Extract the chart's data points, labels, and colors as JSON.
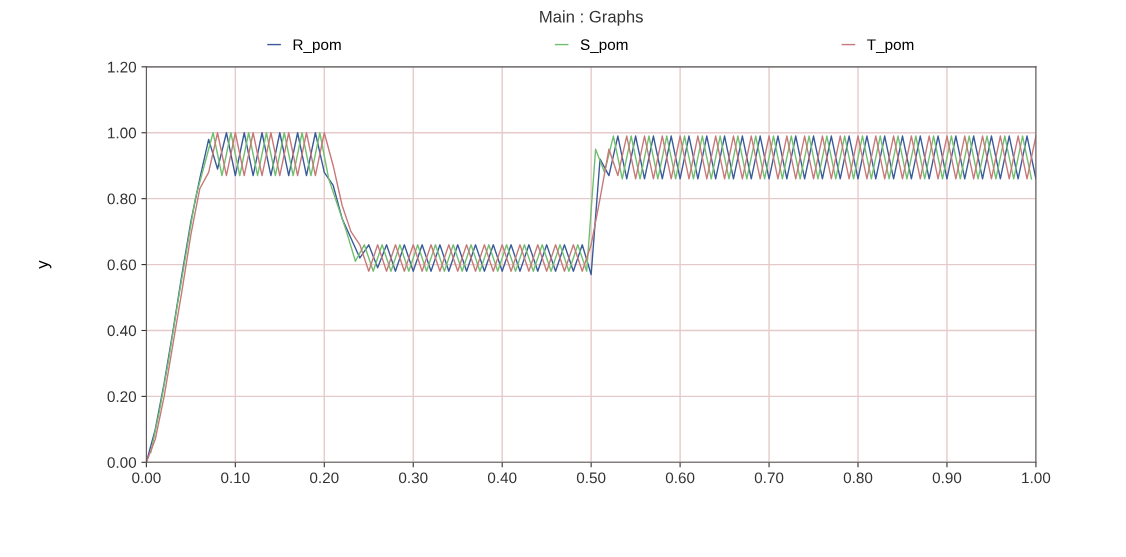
{
  "chart_data": {
    "type": "line",
    "title": "Main : Graphs",
    "ylabel": "y",
    "x": [
      0,
      0.01,
      0.02,
      0.03,
      0.04,
      0.05,
      0.06,
      0.07,
      0.08,
      0.09,
      0.1,
      0.11,
      0.12,
      0.13,
      0.14,
      0.15,
      0.16,
      0.17,
      0.18,
      0.19,
      0.2,
      0.21,
      0.22,
      0.23,
      0.24,
      0.25,
      0.26,
      0.27,
      0.28,
      0.29,
      0.3,
      0.31,
      0.32,
      0.33,
      0.34,
      0.35,
      0.36,
      0.37,
      0.38,
      0.39,
      0.4,
      0.41,
      0.42,
      0.43,
      0.44,
      0.45,
      0.46,
      0.47,
      0.48,
      0.49,
      0.5,
      0.51,
      0.52,
      0.53,
      0.54,
      0.55,
      0.56,
      0.57,
      0.58,
      0.59,
      0.6,
      0.61,
      0.62,
      0.63,
      0.64,
      0.65,
      0.66,
      0.67,
      0.68,
      0.69,
      0.7,
      0.71,
      0.72,
      0.73,
      0.74,
      0.75,
      0.76,
      0.77,
      0.78,
      0.79,
      0.8,
      0.81,
      0.82,
      0.83,
      0.84,
      0.85,
      0.86,
      0.87,
      0.88,
      0.89,
      0.9,
      0.91,
      0.92,
      0.93,
      0.94,
      0.95,
      0.96,
      0.97,
      0.98,
      0.99,
      1.0
    ],
    "series": [
      {
        "name": "R_pom",
        "color": "#3a5a9a",
        "values": [
          0,
          0.1,
          0.24,
          0.4,
          0.57,
          0.73,
          0.86,
          0.98,
          0.89,
          1.0,
          0.87,
          1.0,
          0.87,
          1.0,
          0.87,
          1.0,
          0.87,
          1.0,
          0.87,
          1.0,
          0.88,
          0.84,
          0.74,
          0.68,
          0.62,
          0.66,
          0.59,
          0.66,
          0.58,
          0.66,
          0.58,
          0.66,
          0.58,
          0.66,
          0.58,
          0.66,
          0.58,
          0.66,
          0.58,
          0.66,
          0.58,
          0.66,
          0.58,
          0.66,
          0.58,
          0.66,
          0.58,
          0.66,
          0.58,
          0.66,
          0.57,
          0.92,
          0.87,
          0.99,
          0.86,
          0.99,
          0.86,
          0.99,
          0.86,
          0.99,
          0.86,
          0.99,
          0.86,
          0.99,
          0.86,
          0.99,
          0.86,
          0.99,
          0.86,
          0.99,
          0.86,
          0.99,
          0.86,
          0.99,
          0.86,
          0.99,
          0.86,
          0.99,
          0.86,
          0.99,
          0.86,
          0.99,
          0.86,
          0.99,
          0.86,
          0.99,
          0.86,
          0.99,
          0.86,
          0.99,
          0.86,
          0.99,
          0.86,
          0.99,
          0.86,
          0.99,
          0.86,
          0.99,
          0.86,
          0.99,
          0.86
        ]
      },
      {
        "name": "S_pom",
        "color": "#6fbf6f",
        "x": [
          0.005,
          0.015,
          0.025,
          0.035,
          0.045,
          0.055,
          0.065,
          0.075,
          0.085,
          0.095,
          0.105,
          0.115,
          0.125,
          0.135,
          0.145,
          0.155,
          0.165,
          0.175,
          0.185,
          0.195,
          0.205,
          0.215,
          0.225,
          0.235,
          0.245,
          0.255,
          0.265,
          0.275,
          0.285,
          0.295,
          0.305,
          0.315,
          0.325,
          0.335,
          0.345,
          0.355,
          0.365,
          0.375,
          0.385,
          0.395,
          0.405,
          0.415,
          0.425,
          0.435,
          0.445,
          0.455,
          0.465,
          0.475,
          0.485,
          0.495,
          0.505,
          0.515,
          0.525,
          0.535,
          0.545,
          0.555,
          0.565,
          0.575,
          0.585,
          0.595,
          0.605,
          0.615,
          0.625,
          0.635,
          0.645,
          0.655,
          0.665,
          0.675,
          0.685,
          0.695,
          0.705,
          0.715,
          0.725,
          0.735,
          0.745,
          0.755,
          0.765,
          0.775,
          0.785,
          0.795,
          0.805,
          0.815,
          0.825,
          0.835,
          0.845,
          0.855,
          0.865,
          0.875,
          0.885,
          0.895,
          0.905,
          0.915,
          0.925,
          0.935,
          0.945,
          0.955,
          0.965,
          0.975,
          0.985,
          0.995
        ],
        "values": [
          0.03,
          0.16,
          0.31,
          0.48,
          0.64,
          0.8,
          0.9,
          1.0,
          0.87,
          1.0,
          0.87,
          1.0,
          0.87,
          1.0,
          0.87,
          1.0,
          0.87,
          1.0,
          0.87,
          1.0,
          0.86,
          0.78,
          0.7,
          0.61,
          0.66,
          0.58,
          0.66,
          0.58,
          0.66,
          0.58,
          0.66,
          0.58,
          0.66,
          0.58,
          0.66,
          0.58,
          0.66,
          0.58,
          0.66,
          0.58,
          0.66,
          0.58,
          0.66,
          0.58,
          0.66,
          0.58,
          0.66,
          0.58,
          0.66,
          0.58,
          0.95,
          0.88,
          0.99,
          0.86,
          0.99,
          0.86,
          0.99,
          0.86,
          0.99,
          0.86,
          0.99,
          0.86,
          0.99,
          0.86,
          0.99,
          0.86,
          0.99,
          0.86,
          0.99,
          0.86,
          0.99,
          0.86,
          0.99,
          0.86,
          0.99,
          0.86,
          0.99,
          0.86,
          0.99,
          0.86,
          0.99,
          0.86,
          0.99,
          0.86,
          0.99,
          0.86,
          0.99,
          0.86,
          0.99,
          0.86,
          0.99,
          0.86,
          0.99,
          0.86,
          0.99,
          0.86,
          0.99,
          0.86,
          0.99,
          0.86
        ]
      },
      {
        "name": "T_pom",
        "color": "#c87878",
        "values": [
          0,
          0.07,
          0.2,
          0.36,
          0.52,
          0.69,
          0.83,
          0.88,
          1.0,
          0.87,
          1.0,
          0.87,
          1.0,
          0.87,
          1.0,
          0.87,
          1.0,
          0.87,
          1.0,
          0.87,
          1.0,
          0.9,
          0.78,
          0.7,
          0.66,
          0.58,
          0.66,
          0.58,
          0.66,
          0.58,
          0.66,
          0.58,
          0.66,
          0.58,
          0.66,
          0.58,
          0.66,
          0.58,
          0.66,
          0.58,
          0.66,
          0.58,
          0.66,
          0.58,
          0.66,
          0.58,
          0.66,
          0.58,
          0.66,
          0.58,
          0.66,
          0.8,
          0.95,
          0.87,
          0.99,
          0.86,
          0.99,
          0.86,
          0.99,
          0.86,
          0.99,
          0.86,
          0.99,
          0.86,
          0.99,
          0.86,
          0.99,
          0.86,
          0.99,
          0.86,
          0.99,
          0.86,
          0.99,
          0.86,
          0.99,
          0.86,
          0.99,
          0.86,
          0.99,
          0.86,
          0.99,
          0.86,
          0.99,
          0.86,
          0.99,
          0.86,
          0.99,
          0.86,
          0.99,
          0.86,
          0.99,
          0.86,
          0.99,
          0.86,
          0.99,
          0.86,
          0.99,
          0.86,
          0.99,
          0.86,
          0.99
        ]
      }
    ],
    "xlim": [
      0,
      1
    ],
    "xticks": [
      {
        "value": 0,
        "label": "0.00"
      },
      {
        "value": 0.1,
        "label": "0.10"
      },
      {
        "value": 0.2,
        "label": "0.20"
      },
      {
        "value": 0.3,
        "label": "0.30"
      },
      {
        "value": 0.4,
        "label": "0.40"
      },
      {
        "value": 0.5,
        "label": "0.50"
      },
      {
        "value": 0.6,
        "label": "0.60"
      },
      {
        "value": 0.7,
        "label": "0.70"
      },
      {
        "value": 0.8,
        "label": "0.80"
      },
      {
        "value": 0.9,
        "label": "0.90"
      },
      {
        "value": 1,
        "label": "1.00"
      }
    ],
    "ylim": [
      0,
      1.2
    ],
    "yticks": [
      {
        "value": 0,
        "label": "0.00"
      },
      {
        "value": 0.2,
        "label": "0.20"
      },
      {
        "value": 0.4,
        "label": "0.40"
      },
      {
        "value": 0.6,
        "label": "0.60"
      },
      {
        "value": 0.8,
        "label": "0.80"
      },
      {
        "value": 1.0,
        "label": "1.00"
      },
      {
        "value": 1.2,
        "label": "1.20"
      }
    ],
    "grid": true,
    "legend": "top",
    "marker": "none",
    "line_style": "solid"
  }
}
